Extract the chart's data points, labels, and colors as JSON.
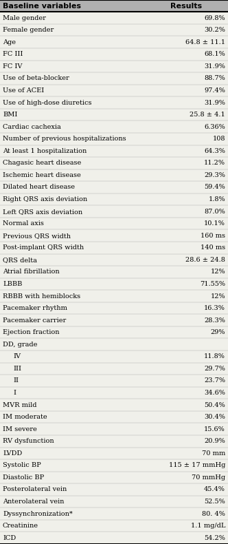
{
  "title_col1": "Baseline variables",
  "title_col2": "Results",
  "header_bg": "#b0b0b0",
  "header_text_color": "#000000",
  "body_bg": "#f0f0ea",
  "rows": [
    {
      "label": "Male gender",
      "value": "69.8%",
      "indent": 0
    },
    {
      "label": "Female gender",
      "value": "30.2%",
      "indent": 0
    },
    {
      "label": "Age",
      "value": "64.8 ± 11.1",
      "indent": 0
    },
    {
      "label": "FC III",
      "value": "68.1%",
      "indent": 0
    },
    {
      "label": "FC IV",
      "value": "31.9%",
      "indent": 0
    },
    {
      "label": "Use of beta-blocker",
      "value": "88.7%",
      "indent": 0
    },
    {
      "label": "Use of ACEI",
      "value": "97.4%",
      "indent": 0
    },
    {
      "label": "Use of high-dose diuretics",
      "value": "31.9%",
      "indent": 0
    },
    {
      "label": "BMI",
      "value": "25.8 ± 4.1",
      "indent": 0
    },
    {
      "label": "Cardiac cachexia",
      "value": "6.36%",
      "indent": 0
    },
    {
      "label": "Number of previous hospitalizations",
      "value": "108",
      "indent": 0
    },
    {
      "label": "At least 1 hospitalization",
      "value": "64.3%",
      "indent": 0
    },
    {
      "label": "Chagasic heart disease",
      "value": "11.2%",
      "indent": 0
    },
    {
      "label": "Ischemic heart disease",
      "value": "29.3%",
      "indent": 0
    },
    {
      "label": "Dilated heart disease",
      "value": "59.4%",
      "indent": 0
    },
    {
      "label": "Right QRS axis deviation",
      "value": "1.8%",
      "indent": 0
    },
    {
      "label": "Left QRS axis deviation",
      "value": "87.0%",
      "indent": 0
    },
    {
      "label": "Normal axis",
      "value": "10.1%",
      "indent": 0
    },
    {
      "label": "Previous QRS width",
      "value": "160 ms",
      "indent": 0
    },
    {
      "label": "Post-implant QRS width",
      "value": "140 ms",
      "indent": 0
    },
    {
      "label": "QRS delta",
      "value": "28.6 ± 24.8",
      "indent": 0
    },
    {
      "label": "Atrial fibrillation",
      "value": "12%",
      "indent": 0
    },
    {
      "label": "LBBB",
      "value": "71.55%",
      "indent": 0
    },
    {
      "label": "RBBB with hemiblocks",
      "value": "12%",
      "indent": 0
    },
    {
      "label": "Pacemaker rhythm",
      "value": "16.3%",
      "indent": 0
    },
    {
      "label": "Pacemaker carrier",
      "value": "28.3%",
      "indent": 0
    },
    {
      "label": "Ejection fraction",
      "value": "29%",
      "indent": 0
    },
    {
      "label": "DD, grade",
      "value": "",
      "indent": 0
    },
    {
      "label": "IV",
      "value": "11.8%",
      "indent": 1
    },
    {
      "label": "III",
      "value": "29.7%",
      "indent": 1
    },
    {
      "label": "II",
      "value": "23.7%",
      "indent": 1
    },
    {
      "label": "I",
      "value": "34.6%",
      "indent": 1
    },
    {
      "label": "MVR mild",
      "value": "50.4%",
      "indent": 0
    },
    {
      "label": "IM moderate",
      "value": "30.4%",
      "indent": 0
    },
    {
      "label": "IM severe",
      "value": "15.6%",
      "indent": 0
    },
    {
      "label": "RV dysfunction",
      "value": "20.9%",
      "indent": 0
    },
    {
      "label": "LVDD",
      "value": "70 mm",
      "indent": 0
    },
    {
      "label": "Systolic BP",
      "value": "115 ± 17 mmHg",
      "indent": 0
    },
    {
      "label": "Diastolic BP",
      "value": "70 mmHg",
      "indent": 0
    },
    {
      "label": "Posterolateral vein",
      "value": "45.4%",
      "indent": 0
    },
    {
      "label": "Anterolateral vein",
      "value": "52.5%",
      "indent": 0
    },
    {
      "label": "Dyssynchronization*",
      "value": "80. 4%",
      "indent": 0
    },
    {
      "label": "Creatinine",
      "value": "1.1 mg/dL",
      "indent": 0
    },
    {
      "label": "ICD",
      "value": "54.2%",
      "indent": 0
    }
  ],
  "font_size": 7.0,
  "header_font_size": 8.0,
  "figsize": [
    3.32,
    7.9
  ],
  "dpi": 100
}
